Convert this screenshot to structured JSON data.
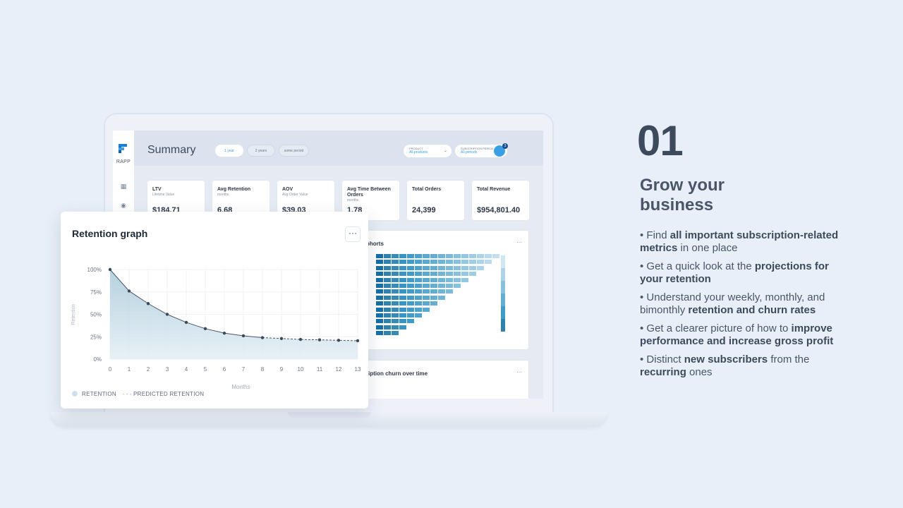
{
  "app": {
    "brand": "RAPP",
    "summary_title": "Summary",
    "periods": [
      "1 year",
      "2 years",
      "some period"
    ],
    "product_filter": {
      "title": "PRODUCT",
      "value": "All products"
    },
    "subscription_filter": {
      "title": "SUBSCRIPTION PERIOD",
      "value": "All periods"
    },
    "notification_count": "3",
    "kpis": [
      {
        "label": "LTV",
        "sub": "Lifetime Value",
        "value": "$184.71"
      },
      {
        "label": "Avg Retention",
        "sub": "months",
        "value": "6.68"
      },
      {
        "label": "AOV",
        "sub": "Avg Order Value",
        "value": "$39.03"
      },
      {
        "label": "Avg Time Between Orders",
        "sub": "months",
        "value": "1.78"
      },
      {
        "label": "Total Orders",
        "sub": "",
        "value": "24,399"
      },
      {
        "label": "Total Revenue",
        "sub": "",
        "value": "$954,801.40"
      }
    ],
    "cohorts_title": "ohorts",
    "churn_title": "ription churn over time",
    "more": "···"
  },
  "retention_card": {
    "title": "Retention graph",
    "more": "···",
    "legend_retention": "RETENTION",
    "legend_predicted": "PREDICTED RETENTION",
    "colors": {
      "fill": "#c7dde9",
      "line": "#4a5568"
    }
  },
  "chart_data": {
    "type": "area",
    "title": "Retention graph",
    "xlabel": "Months",
    "ylabel": "Retention",
    "x": [
      0,
      1,
      2,
      3,
      4,
      5,
      6,
      7,
      8,
      9,
      10,
      11,
      12,
      13
    ],
    "y_ticks": [
      "0%",
      "25%",
      "50%",
      "75%",
      "100%"
    ],
    "ylim": [
      0,
      100
    ],
    "series": [
      {
        "name": "RETENTION",
        "values": [
          100,
          76,
          62,
          50,
          41,
          34,
          29,
          26,
          24,
          23,
          22,
          21.5,
          21,
          20.5
        ]
      },
      {
        "name": "PREDICTED RETENTION",
        "values": [
          null,
          null,
          null,
          null,
          null,
          null,
          null,
          null,
          24,
          23,
          22,
          21.5,
          21,
          20.5
        ]
      }
    ],
    "grid": true,
    "legend": "bottom-left"
  },
  "marketing": {
    "number": "01",
    "headline": "Grow your business",
    "bullets": [
      [
        {
          "t": "• Find "
        },
        {
          "t": "all important subscription-related metrics",
          "b": true
        },
        {
          "t": " in one place"
        }
      ],
      [
        {
          "t": "• Get a quick look at the "
        },
        {
          "t": "projections for your retention",
          "b": true
        }
      ],
      [
        {
          "t": "• Understand your weekly, monthly, and bimonthly "
        },
        {
          "t": "retention and churn rates",
          "b": true
        }
      ],
      [
        {
          "t": "• Get a clearer picture of how to "
        },
        {
          "t": "improve performance and increase gross profit",
          "b": true
        }
      ],
      [
        {
          "t": "• Distinct "
        },
        {
          "t": "new subscribers",
          "b": true
        },
        {
          "t": " from the "
        },
        {
          "t": "recurring",
          "b": true
        },
        {
          "t": " ones"
        }
      ]
    ]
  }
}
